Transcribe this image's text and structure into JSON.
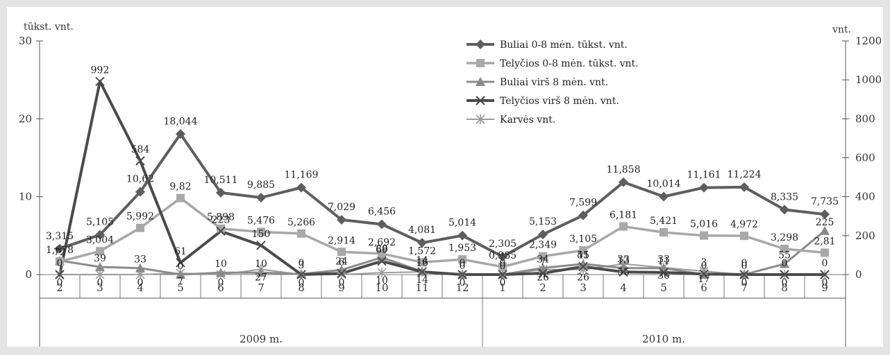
{
  "chart_data": {
    "type": "line",
    "left_axis_unit": "tūkst. vnt.",
    "right_axis_unit": "vnt.",
    "left_ylim": [
      0,
      30
    ],
    "left_ticks": [
      "0",
      "10",
      "20",
      "30"
    ],
    "right_ylim": [
      0,
      1200
    ],
    "right_ticks": [
      "0",
      "200",
      "400",
      "600",
      "800",
      "1000",
      "1200"
    ],
    "months": [
      "2",
      "3",
      "4",
      "5",
      "6",
      "7",
      "8",
      "9",
      "10",
      "11",
      "12",
      "1",
      "2",
      "3",
      "4",
      "5",
      "6",
      "7",
      "8",
      "9"
    ],
    "year_groups": [
      {
        "label": "2009 m.",
        "count": 11
      },
      {
        "label": "2010 m.",
        "count": 9
      }
    ],
    "grid": false,
    "legend_position": "top-right",
    "series": [
      {
        "name": "Buliai 0-8 mėn.  tūkst. vnt.",
        "axis": "left",
        "color": "#5e5e5e",
        "marker": "diamond",
        "values": [
          3.315,
          5.105,
          10.62,
          18.044,
          10.511,
          9.885,
          11.169,
          7.029,
          6.456,
          4.081,
          5.014,
          2.305,
          5.153,
          7.599,
          11.858,
          10.014,
          11.161,
          11.224,
          8.335,
          7.735
        ],
        "labels": [
          "3,315",
          "5,105",
          "10,62",
          "18,044",
          "10,511",
          "9,885",
          "11,169",
          "7,029",
          "6,456",
          "4,081",
          "5,014",
          "2,305",
          "5,153",
          "7,599",
          "11,858",
          "10,014",
          "11,161",
          "11,224",
          "8,335",
          "7,735"
        ]
      },
      {
        "name": "Telyčios 0-8 mėn. tūkst. vnt.",
        "axis": "left",
        "color": "#a8a8a8",
        "marker": "square",
        "values": [
          1.678,
          3.004,
          5.992,
          9.82,
          5.898,
          5.476,
          5.266,
          2.914,
          2.692,
          1.572,
          1.953,
          0.985,
          2.349,
          3.105,
          6.181,
          5.421,
          5.016,
          4.972,
          3.298,
          2.81
        ],
        "labels": [
          "1,678",
          "3,004",
          "5,992",
          "9,82",
          "5,898",
          "5,476",
          "5,266",
          "2,914",
          "2,692",
          "1,572",
          "1,953",
          "0,985",
          "2,349",
          "3,105",
          "6,181",
          "5,421",
          "5,016",
          "4,972",
          "3,298",
          "2,81"
        ]
      },
      {
        "name": "Buliai virš 8 mėn.  vnt.",
        "axis": "right",
        "color": "#8a8a8a",
        "marker": "triangle",
        "values": [
          72,
          39,
          33,
          0,
          10,
          10,
          3,
          24,
          88,
          16,
          0,
          0,
          34,
          55,
          33,
          33,
          0,
          0,
          55,
          225
        ],
        "labels": [
          "72",
          "39",
          "33",
          "0",
          "10",
          "10",
          "3",
          "24",
          "88",
          "16",
          "0",
          "0",
          "34",
          "55",
          "33",
          "33",
          "0",
          "0",
          "55",
          "225"
        ]
      },
      {
        "name": "Telyčios virš 8 mėn. vnt.",
        "axis": "right",
        "color": "#4a4a4a",
        "marker": "x",
        "values": [
          0,
          992,
          584,
          61,
          223,
          150,
          0,
          6,
          69,
          14,
          0,
          0,
          7,
          41,
          13,
          11,
          3,
          0,
          0,
          0
        ],
        "labels": [
          "0",
          "992",
          "584",
          "61",
          "223",
          "150",
          "0",
          "6",
          "69",
          "14",
          "0",
          "0",
          "7",
          "41",
          "13",
          "11",
          "3",
          "0",
          "0",
          "0"
        ]
      },
      {
        "name": "Karvės vnt.",
        "axis": "right",
        "color": "#9c9c9c",
        "marker": "star",
        "values": [
          0,
          0,
          0,
          7,
          0,
          27,
          0,
          0,
          10,
          14,
          0,
          0,
          26,
          26,
          55,
          36,
          17,
          0,
          0,
          0
        ],
        "labels": [
          "0",
          "0",
          "0",
          "7",
          "0",
          "27",
          "0",
          "0",
          "10",
          "14",
          "0",
          "0",
          "26",
          "26",
          "55",
          "36",
          "17",
          "0",
          "0",
          "0"
        ]
      }
    ]
  }
}
